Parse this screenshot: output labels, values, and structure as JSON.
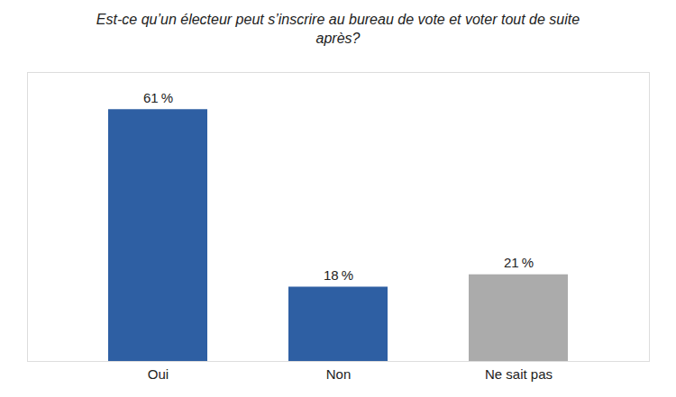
{
  "chart_data": {
    "type": "bar",
    "title": "Est-ce qu’un électeur peut s’inscrire au bureau de vote et voter tout de suite\naprès?",
    "categories": [
      "Oui",
      "Non",
      "Ne sait pas"
    ],
    "values": [
      61,
      18,
      21
    ],
    "value_labels": [
      "61 %",
      "18 %",
      "21 %"
    ],
    "colors": [
      "#2E5FA3",
      "#2E5FA3",
      "#ABABAB"
    ],
    "ylim": [
      0,
      70
    ],
    "data_labels": true,
    "tick_labels": "x",
    "grid": false
  }
}
